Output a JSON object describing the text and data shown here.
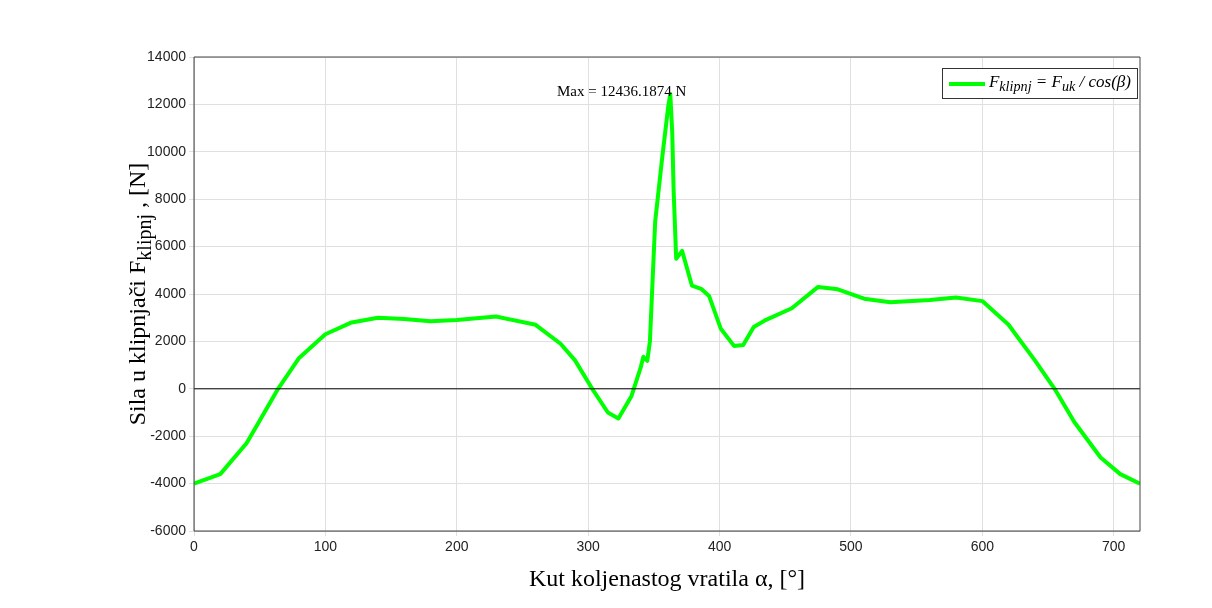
{
  "chart_data": {
    "type": "line",
    "xlabel": "Kut koljenastog vratila  α, [°]",
    "ylabel": "Sila u klipnjači  F$_{klipnj}$ , [N]",
    "xlim": [
      0,
      720
    ],
    "xticks": [
      0,
      100,
      200,
      300,
      400,
      500,
      600,
      700
    ],
    "ylim": [
      -6000,
      14000
    ],
    "yticks": [
      -6000,
      -4000,
      -2000,
      0,
      2000,
      4000,
      6000,
      8000,
      10000,
      12000,
      14000
    ],
    "grid": true,
    "legend": "top right",
    "series": [
      {
        "name": "F$_{klipnj}$ = F$_{uk}$ /  cos(β)",
        "color": "#00ff00",
        "x": [
          0,
          20,
          40,
          64,
          80,
          100,
          120,
          140,
          160,
          180,
          200,
          230,
          260,
          279,
          290,
          304,
          315,
          323,
          333,
          340,
          342,
          345,
          347,
          351,
          356,
          361,
          362.5,
          364,
          365,
          367,
          371.5,
          379,
          386,
          392,
          401,
          411,
          418,
          426,
          435,
          455,
          475,
          490,
          510,
          530,
          560,
          580,
          600,
          620,
          640,
          655,
          670,
          690,
          705,
          720
        ],
        "values": [
          -4000,
          -3600,
          -2300,
          0,
          1300,
          2300,
          2800,
          3000,
          2950,
          2850,
          2900,
          3050,
          2700,
          1900,
          1200,
          -80,
          -1000,
          -1250,
          -300,
          900,
          1350,
          1180,
          2000,
          7050,
          9580,
          11940,
          12440,
          10800,
          8440,
          5490,
          5820,
          4350,
          4220,
          3920,
          2530,
          1810,
          1850,
          2610,
          2900,
          3400,
          4300,
          4200,
          3800,
          3650,
          3750,
          3850,
          3700,
          2700,
          1200,
          0,
          -1400,
          -2900,
          -3600,
          -4000
        ]
      }
    ],
    "ref_lines": [
      {
        "axis": "y",
        "value": 0,
        "color": "#000000"
      }
    ],
    "annotations": [
      {
        "text": "Max = 12436.1874 N",
        "x": 362.5,
        "y": 12436.1874
      }
    ]
  }
}
